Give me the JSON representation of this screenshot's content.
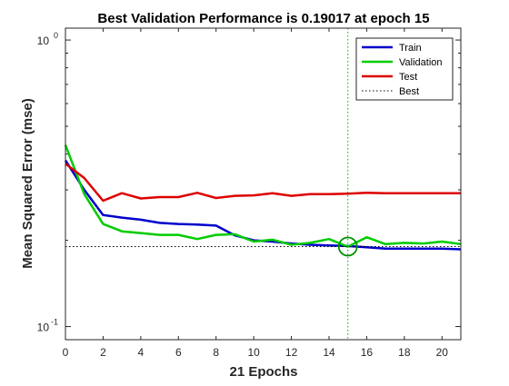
{
  "chart_data": {
    "type": "line",
    "title": "Best Validation Performance is 0.19017 at epoch 15",
    "xlabel": "21 Epochs",
    "ylabel": "Mean Squared Error  (mse)",
    "xlim": [
      0,
      21
    ],
    "ylim": [
      0.09,
      1.1
    ],
    "yscale": "log",
    "x_ticks": [
      0,
      2,
      4,
      6,
      8,
      10,
      12,
      14,
      16,
      18,
      20
    ],
    "y_ticks": [
      {
        "value": 0.1,
        "base": "10",
        "exp": "-1"
      },
      {
        "value": 1,
        "base": "10",
        "exp": "0"
      }
    ],
    "grid": false,
    "legend_position": "top-right",
    "x": [
      0,
      1,
      2,
      3,
      4,
      5,
      6,
      7,
      8,
      9,
      10,
      11,
      12,
      13,
      14,
      15,
      16,
      17,
      18,
      19,
      20,
      21
    ],
    "series": [
      {
        "name": "Train",
        "color": "#0000cc",
        "style": "solid",
        "values": [
          0.38,
          0.3,
          0.245,
          0.24,
          0.236,
          0.23,
          0.228,
          0.227,
          0.225,
          0.208,
          0.2,
          0.198,
          0.195,
          0.193,
          0.192,
          0.191,
          0.189,
          0.187,
          0.187,
          0.187,
          0.187,
          0.186
        ]
      },
      {
        "name": "Validation",
        "color": "#00cc00",
        "style": "solid",
        "values": [
          0.43,
          0.29,
          0.228,
          0.215,
          0.212,
          0.209,
          0.209,
          0.202,
          0.209,
          0.21,
          0.198,
          0.201,
          0.193,
          0.196,
          0.202,
          0.19,
          0.205,
          0.194,
          0.196,
          0.195,
          0.198,
          0.194
        ]
      },
      {
        "name": "Test",
        "color": "#dd0000",
        "style": "solid",
        "values": [
          0.37,
          0.33,
          0.275,
          0.292,
          0.28,
          0.283,
          0.283,
          0.293,
          0.281,
          0.286,
          0.287,
          0.292,
          0.286,
          0.29,
          0.29,
          0.291,
          0.293,
          0.292,
          0.292,
          0.292,
          0.292,
          0.292
        ]
      }
    ],
    "best": {
      "name": "Best",
      "epoch": 15,
      "value": 0.19017,
      "color": "#00aa00",
      "line_color": "#000000",
      "style": "dotted"
    }
  }
}
